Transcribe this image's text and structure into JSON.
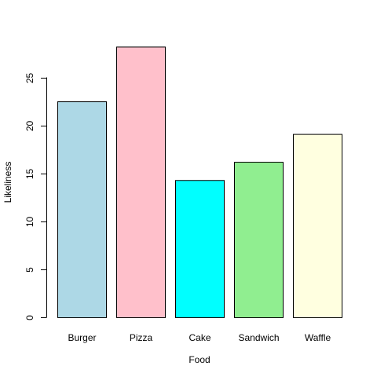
{
  "chart_data": {
    "type": "bar",
    "title": "",
    "xlabel": "Food",
    "ylabel": "Likeliness",
    "categories": [
      "Burger",
      "Pizza",
      "Cake",
      "Sandwich",
      "Waffle"
    ],
    "values": [
      22.5,
      28.2,
      14.3,
      16.2,
      19.1
    ],
    "colors": [
      "#add8e6",
      "#ffc0cb",
      "#00ffff",
      "#90ee90",
      "#ffffe0"
    ],
    "bar_border_color": "#000000",
    "y_ticks": [
      0,
      5,
      10,
      15,
      20,
      25
    ],
    "ylim": [
      0,
      28.2
    ],
    "grid": false,
    "legend": "none"
  }
}
